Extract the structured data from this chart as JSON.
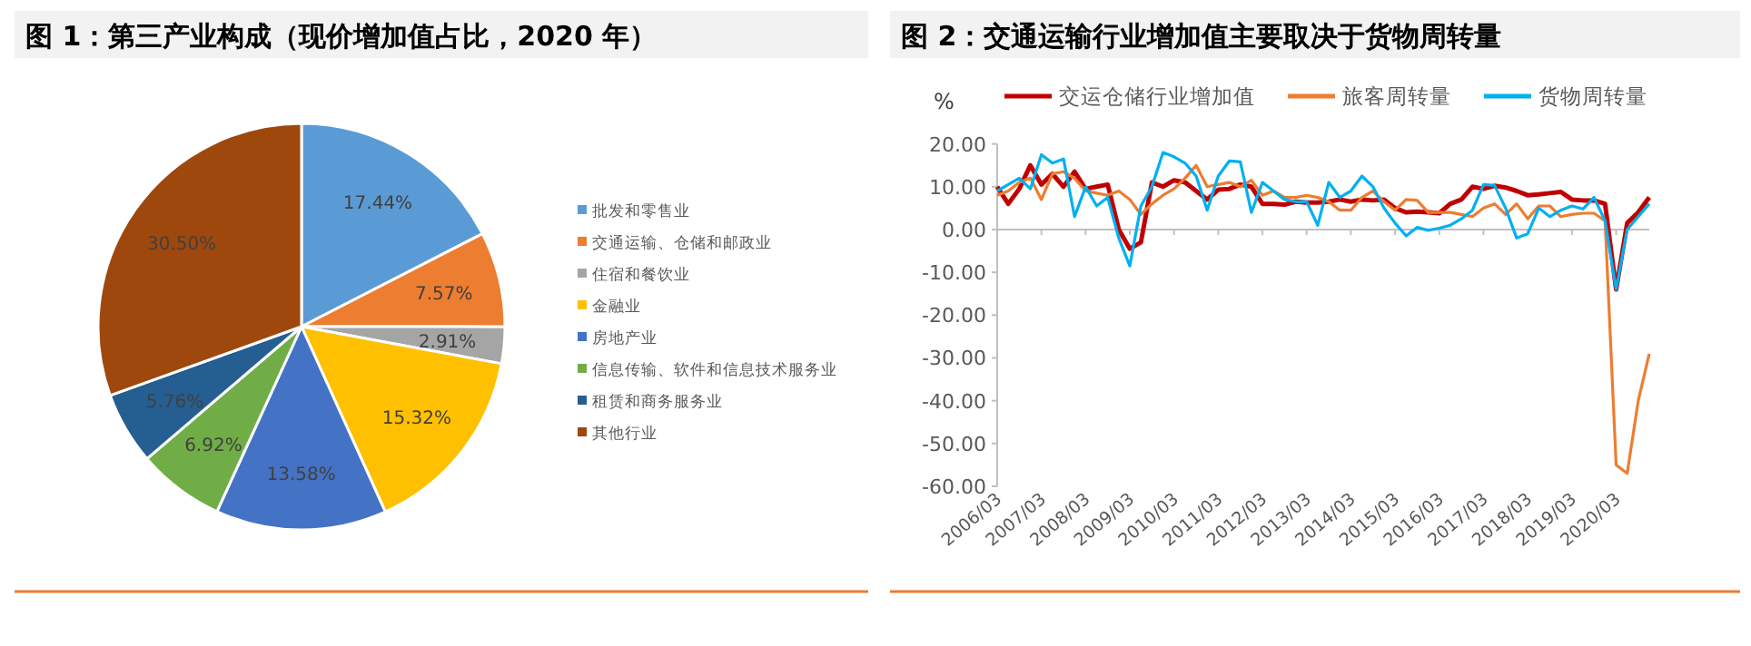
{
  "chart_data": [
    {
      "type": "pie",
      "title": "图 1：第三产业构成（现价增加值占比，2020 年）",
      "categories": [
        "批发和零售业",
        "交通运输、仓储和邮政业",
        "住宿和餐饮业",
        "金融业",
        "房地产业",
        "信息传输、软件和信息技术服务业",
        "租赁和商务服务业",
        "其他行业"
      ],
      "values": [
        17.44,
        7.57,
        2.91,
        15.32,
        13.58,
        6.92,
        5.76,
        30.5
      ],
      "colors": [
        "#5b9bd5",
        "#ed7d31",
        "#a5a5a5",
        "#ffc000",
        "#4472c4",
        "#70ad47",
        "#255e91",
        "#9e480e"
      ],
      "value_labels": [
        "17.44%",
        "7.57%",
        "2.91%",
        "15.32%",
        "13.58%",
        "6.92%",
        "5.76%",
        "30.50%"
      ],
      "legend": "right"
    },
    {
      "type": "line",
      "title": "图 2：交通运输行业增加值主要取决于货物周转量",
      "ylabel": "%",
      "x": [
        "2006-03",
        "2006-06",
        "2006-09",
        "2006-12",
        "2007-03",
        "2007-06",
        "2007-09",
        "2007-12",
        "2008-03",
        "2008-06",
        "2008-09",
        "2008-12",
        "2009-03",
        "2009-06",
        "2009-09",
        "2009-12",
        "2010-03",
        "2010-06",
        "2010-09",
        "2010-12",
        "2011-03",
        "2011-06",
        "2011-09",
        "2011-12",
        "2012-03",
        "2012-06",
        "2012-09",
        "2012-12",
        "2013-03",
        "2013-06",
        "2013-09",
        "2013-12",
        "2014-03",
        "2014-06",
        "2014-09",
        "2014-12",
        "2015-03",
        "2015-06",
        "2015-09",
        "2015-12",
        "2016-03",
        "2016-06",
        "2016-09",
        "2016-12",
        "2017-03",
        "2017-06",
        "2017-09",
        "2017-12",
        "2018-03",
        "2018-06",
        "2018-09",
        "2018-12",
        "2019-03",
        "2019-06",
        "2019-09",
        "2019-12",
        "2020-03",
        "2020-06",
        "2020-09",
        "2020-12"
      ],
      "series": [
        {
          "name": "交运仓储行业增加值",
          "color": "#c00000",
          "values": [
            10,
            6,
            9.5,
            15,
            10.5,
            13,
            10,
            13.5,
            9.5,
            10,
            10.5,
            0,
            -4.5,
            -3,
            11,
            10,
            11.5,
            11,
            9,
            7,
            9.3,
            9.5,
            10.5,
            10,
            6,
            6,
            5.8,
            6.5,
            6.3,
            6.3,
            6.5,
            7,
            6.5,
            7,
            6.8,
            7,
            5,
            4,
            4.2,
            4,
            3.8,
            6,
            7,
            10,
            9.5,
            10.2,
            9.8,
            9,
            8,
            8.2,
            8.5,
            8.8,
            7,
            6.8,
            6.8,
            6,
            -14,
            1.5,
            4,
            7.5
          ]
        },
        {
          "name": "旅客周转量",
          "color": "#ed7d31",
          "values": [
            8,
            9,
            11,
            12,
            7,
            13,
            13.5,
            12,
            9,
            8.5,
            8,
            9,
            7,
            3.5,
            6,
            8,
            9.5,
            12,
            15,
            10,
            10.5,
            11,
            10,
            11.5,
            8,
            9,
            7.5,
            7.5,
            8,
            7.5,
            6.5,
            4.5,
            4.5,
            7.5,
            9,
            6.5,
            4.5,
            7,
            6.8,
            4,
            4,
            4,
            3.5,
            3,
            5,
            6,
            3.5,
            6,
            2.5,
            5.5,
            5.5,
            3,
            3.5,
            3.8,
            3.8,
            2,
            -55,
            -57,
            -40,
            -29
          ]
        },
        {
          "name": "货物周转量",
          "color": "#00b0f0",
          "values": [
            9,
            10.5,
            12,
            9.5,
            17.5,
            15.5,
            16.5,
            3,
            10,
            5.5,
            7.5,
            -2,
            -8.5,
            5.5,
            10,
            18,
            17,
            15.5,
            12.5,
            4.5,
            12.5,
            16,
            15.8,
            4,
            11,
            9,
            7,
            6.5,
            6.5,
            1,
            11,
            7.5,
            9,
            12.5,
            10,
            5,
            1.5,
            -1.5,
            0.5,
            -0.2,
            0.3,
            1,
            2.5,
            4.5,
            10.5,
            10.3,
            5,
            -2,
            -1,
            5,
            3,
            4.5,
            5.5,
            4.8,
            7.5,
            2,
            -14,
            0,
            3,
            6
          ]
        }
      ],
      "xlim": [
        "2006-03",
        "2020-12"
      ],
      "xticks": [
        {
          "value": "2006-03",
          "label": "2006/03"
        },
        {
          "value": "2007-03",
          "label": "2007/03"
        },
        {
          "value": "2008-03",
          "label": "2008/03"
        },
        {
          "value": "2009-03",
          "label": "2009/03"
        },
        {
          "value": "2010-03",
          "label": "2010/03"
        },
        {
          "value": "2011-03",
          "label": "2011/03"
        },
        {
          "value": "2012-03",
          "label": "2012/03"
        },
        {
          "value": "2013-03",
          "label": "2013/03"
        },
        {
          "value": "2014-03",
          "label": "2014/03"
        },
        {
          "value": "2015-03",
          "label": "2015/03"
        },
        {
          "value": "2016-03",
          "label": "2016/03"
        },
        {
          "value": "2017-03",
          "label": "2017/03"
        },
        {
          "value": "2018-03",
          "label": "2018/03"
        },
        {
          "value": "2019-03",
          "label": "2019/03"
        },
        {
          "value": "2020-03",
          "label": "2020/03"
        }
      ],
      "ylim": [
        -60,
        20
      ],
      "yticks": [
        {
          "value": -60,
          "label": "-60.00"
        },
        {
          "value": -50,
          "label": "-50.00"
        },
        {
          "value": -40,
          "label": "-40.00"
        },
        {
          "value": -30,
          "label": "-30.00"
        },
        {
          "value": -20,
          "label": "-20.00"
        },
        {
          "value": -10,
          "label": "-10.00"
        },
        {
          "value": 0,
          "label": "0.00"
        },
        {
          "value": 10,
          "label": "10.00"
        },
        {
          "value": 20,
          "label": "20.00"
        }
      ],
      "legend": "top",
      "marker": "none",
      "line_style": "solid"
    }
  ]
}
